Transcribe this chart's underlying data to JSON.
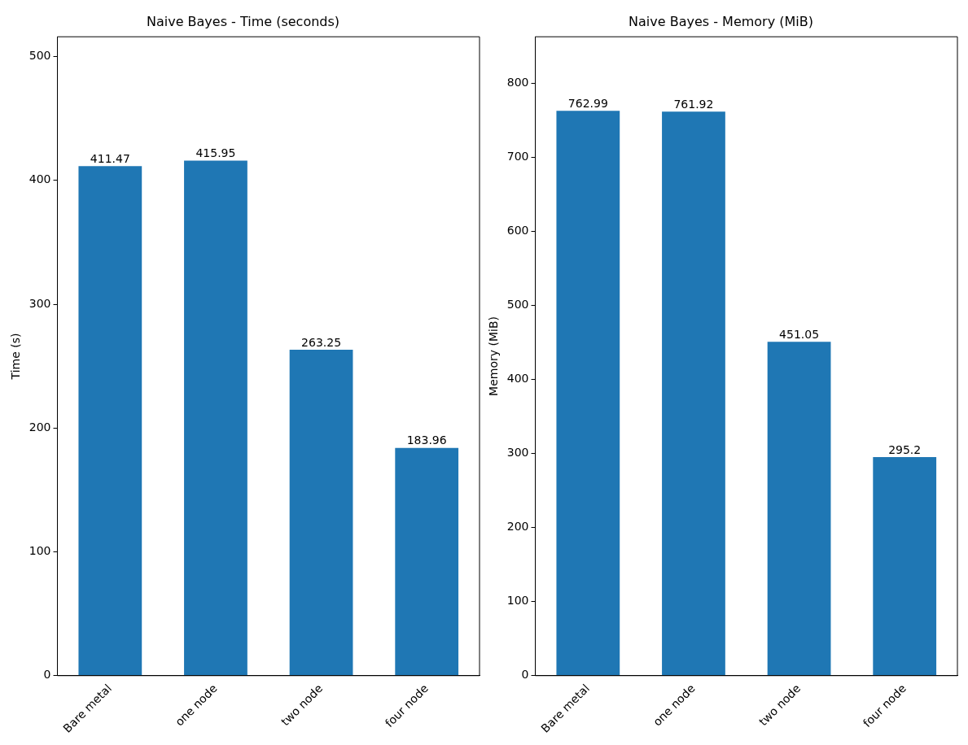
{
  "chart_data": [
    {
      "type": "bar",
      "title": "Naive Bayes - Time (seconds)",
      "ylabel": "Time (s)",
      "categories": [
        "Bare metal",
        "one node",
        "two node",
        "four node"
      ],
      "values": [
        411.47,
        415.95,
        263.25,
        183.96
      ],
      "color": "#1f77b4",
      "ylim": [
        0,
        516
      ],
      "yticks": [
        0,
        100,
        200,
        300,
        400,
        500
      ],
      "data_labels": true,
      "grid": false
    },
    {
      "type": "bar",
      "title": "Naive Bayes - Memory (MiB)",
      "ylabel": "Memory (MiB)",
      "categories": [
        "Bare metal",
        "one node",
        "two node",
        "four node"
      ],
      "values": [
        762.99,
        761.92,
        451.05,
        295.2
      ],
      "color": "#1f77b4",
      "ylim": [
        0,
        863
      ],
      "yticks": [
        0,
        100,
        200,
        300,
        400,
        500,
        600,
        700,
        800
      ],
      "data_labels": true,
      "grid": false
    }
  ]
}
